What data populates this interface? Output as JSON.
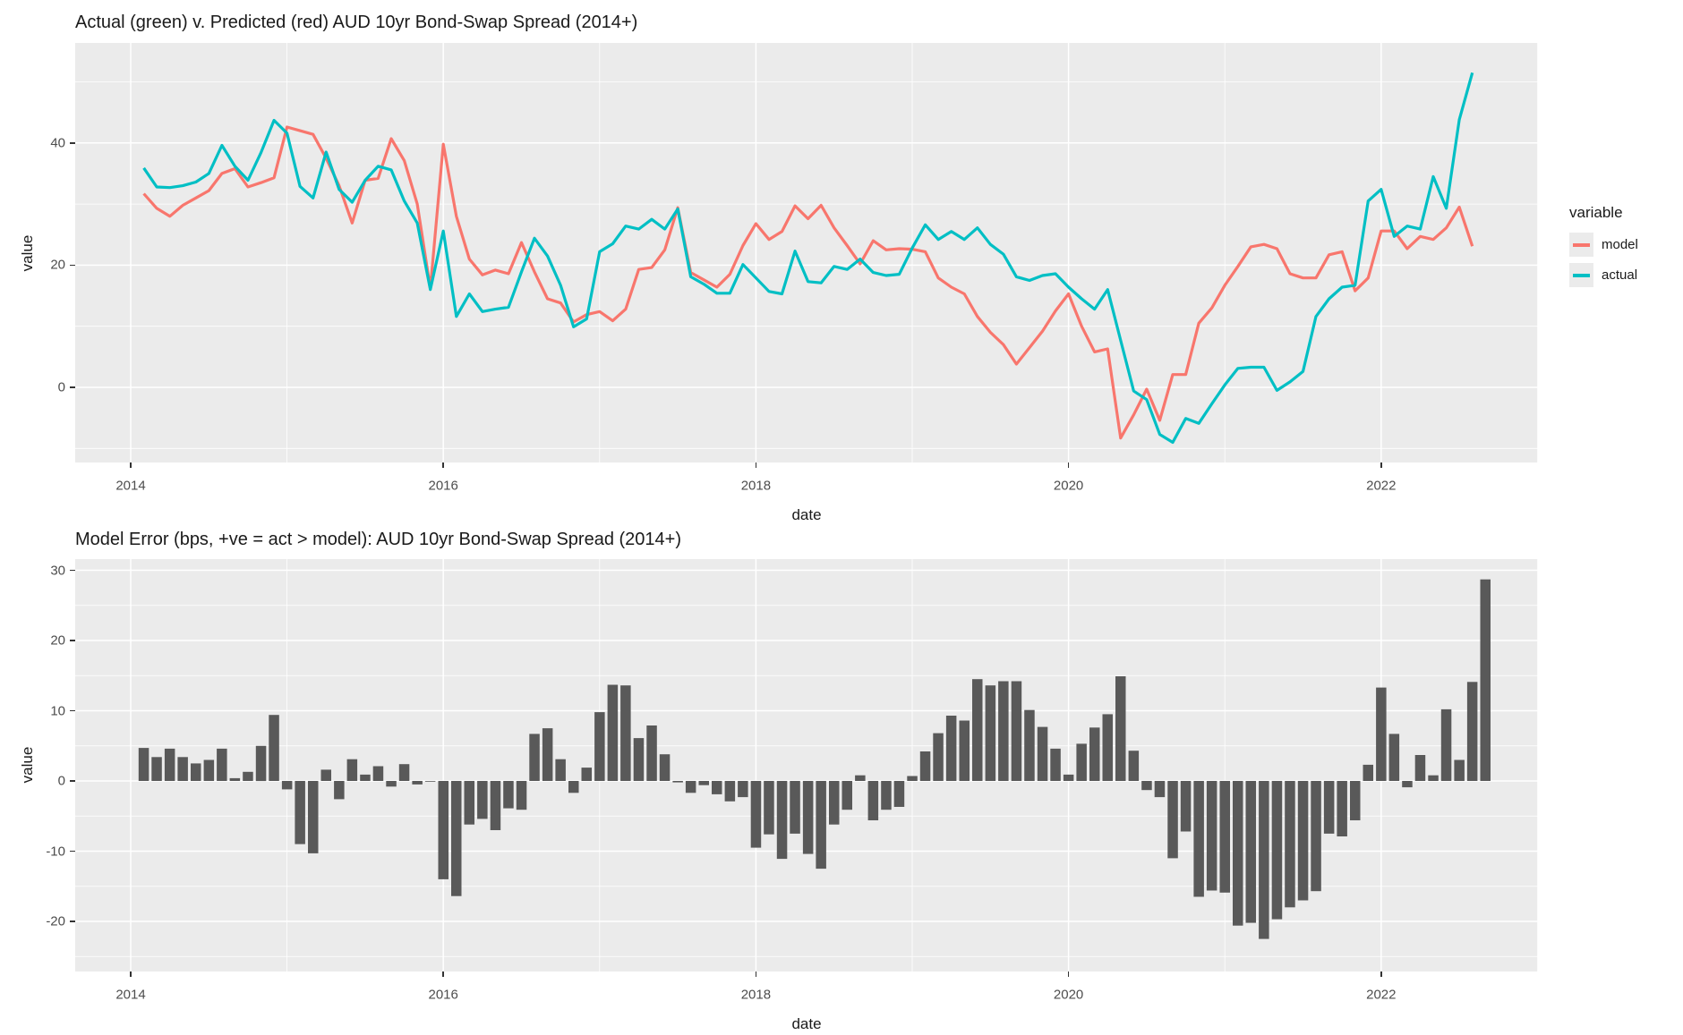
{
  "colors": {
    "panel_background": "#EBEBEB",
    "gridline": "#FFFFFF",
    "axis_text": "#4D4D4D",
    "title_text": "#1A1A1A",
    "tick_mark": "#333333",
    "model_line": "#F8766D",
    "actual_line": "#00BFC4",
    "bar_fill": "#595959"
  },
  "chart_data": [
    {
      "type": "line",
      "title": "Actual (green) v. Predicted (red) AUD 10yr Bond-Swap Spread (2014+)",
      "xlabel": "date",
      "ylabel": "value",
      "x_start": "2014-02",
      "frequency": "monthly",
      "x_ticks": [
        "2014",
        "2016",
        "2018",
        "2020",
        "2022"
      ],
      "y_ticks": [
        "0",
        "20",
        "40"
      ],
      "ylim": [
        -12,
        54
      ],
      "grid": "on",
      "legend": {
        "title": "variable",
        "position": "right",
        "entries": [
          {
            "label": "model",
            "color": "#F8766D"
          },
          {
            "label": "actual",
            "color": "#00BFC4"
          }
        ]
      },
      "series": [
        {
          "name": "model",
          "color": "#F8766D",
          "values": [
            31.7,
            29.3,
            28.0,
            29.8,
            31.0,
            32.2,
            35.0,
            35.8,
            32.8,
            33.5,
            34.3,
            42.6,
            42.0,
            41.4,
            37.5,
            33.0,
            26.9,
            33.9,
            34.2,
            40.7,
            37.1,
            30.0,
            16.2,
            39.8,
            28.0,
            21.0,
            18.4,
            19.2,
            18.6,
            23.7,
            18.9,
            14.5,
            13.8,
            10.7,
            11.9,
            12.4,
            10.9,
            12.8,
            19.3,
            19.6,
            22.5,
            29.4,
            18.8,
            17.6,
            16.4,
            18.5,
            23.2,
            26.8,
            24.2,
            25.5,
            29.7,
            27.6,
            29.8,
            26.1,
            23.2,
            20.2,
            24.0,
            22.5,
            22.7,
            22.6,
            22.2,
            17.9,
            16.4,
            15.3,
            11.6,
            9.0,
            7.0,
            3.8,
            6.5,
            9.2,
            12.5,
            15.3,
            10.0,
            5.8,
            6.3,
            -8.3,
            -4.5,
            -0.3,
            -5.4,
            2.1,
            2.1,
            10.5,
            13.0,
            16.7,
            19.8,
            23.0,
            23.4,
            22.7,
            18.6,
            17.9,
            17.9,
            21.7,
            22.2,
            15.8,
            17.9,
            25.6,
            25.6,
            22.7,
            24.7,
            24.2,
            26.1,
            29.5,
            23.1
          ]
        },
        {
          "name": "actual",
          "color": "#00BFC4",
          "values": [
            35.9,
            32.8,
            32.7,
            33.0,
            33.6,
            35.0,
            39.6,
            36.2,
            33.9,
            38.4,
            43.7,
            41.6,
            32.9,
            31.0,
            38.5,
            32.4,
            30.3,
            33.9,
            36.2,
            35.6,
            30.5,
            26.9,
            16.0,
            25.6,
            11.6,
            15.3,
            12.4,
            12.8,
            13.1,
            18.9,
            24.4,
            21.5,
            16.7,
            9.9,
            11.2,
            22.2,
            23.5,
            26.4,
            25.9,
            27.5,
            25.9,
            29.2,
            18.1,
            16.9,
            15.4,
            15.4,
            20.1,
            17.9,
            15.7,
            15.3,
            22.3,
            17.3,
            17.1,
            19.8,
            19.3,
            21.0,
            18.8,
            18.3,
            18.5,
            22.8,
            26.6,
            24.2,
            25.5,
            24.2,
            26.1,
            23.4,
            21.8,
            18.1,
            17.5,
            18.3,
            18.6,
            16.4,
            14.5,
            12.8,
            16.0,
            7.7,
            -0.6,
            -2.0,
            -7.7,
            -9.0,
            -5.1,
            -5.9,
            -2.7,
            0.4,
            3.1,
            3.3,
            3.3,
            -0.5,
            0.9,
            2.6,
            11.6,
            14.5,
            16.4,
            16.7,
            30.5,
            32.4,
            24.7,
            26.4,
            25.9,
            34.5,
            29.3,
            43.8,
            51.5
          ]
        }
      ]
    },
    {
      "type": "bar",
      "title": "Model Error (bps, +ve = act > model): AUD 10yr Bond-Swap Spread (2014+)",
      "xlabel": "date",
      "ylabel": "value",
      "x_start": "2014-02",
      "frequency": "monthly",
      "x_ticks": [
        "2014",
        "2016",
        "2018",
        "2020",
        "2022"
      ],
      "y_ticks": [
        "-20",
        "-10",
        "0",
        "10",
        "20",
        "30"
      ],
      "ylim": [
        -27,
        31
      ],
      "grid": "on",
      "bar_color": "#595959",
      "values": [
        4.7,
        3.4,
        4.6,
        3.4,
        2.5,
        3.0,
        4.6,
        0.4,
        1.3,
        5.0,
        9.4,
        -1.2,
        -9.0,
        -10.3,
        1.6,
        -2.6,
        3.1,
        0.9,
        2.1,
        -0.8,
        2.4,
        -0.5,
        -0.1,
        -14.0,
        -16.4,
        -6.2,
        -5.4,
        -7.0,
        -3.9,
        -4.1,
        6.7,
        7.5,
        3.1,
        -1.7,
        1.9,
        9.8,
        13.7,
        13.6,
        6.1,
        7.9,
        3.8,
        -0.2,
        -1.7,
        -0.6,
        -1.9,
        -2.9,
        -2.3,
        -9.5,
        -7.6,
        -11.1,
        -7.5,
        -10.4,
        -12.5,
        -6.2,
        -4.1,
        0.8,
        -5.6,
        -4.1,
        -3.7,
        0.7,
        4.2,
        6.8,
        9.3,
        8.6,
        14.5,
        13.6,
        14.2,
        14.2,
        10.1,
        7.7,
        4.6,
        0.9,
        5.3,
        7.6,
        9.5,
        14.9,
        4.3,
        -1.3,
        -2.3,
        -11.0,
        -7.2,
        -16.5,
        -15.6,
        -15.9,
        -20.6,
        -20.2,
        -22.5,
        -19.7,
        -18.0,
        -17.0,
        -15.7,
        -7.5,
        -7.9,
        -5.6,
        2.3,
        13.3,
        6.7,
        -0.9,
        3.7,
        0.8,
        10.2,
        3.0,
        14.1,
        28.7
      ]
    }
  ]
}
